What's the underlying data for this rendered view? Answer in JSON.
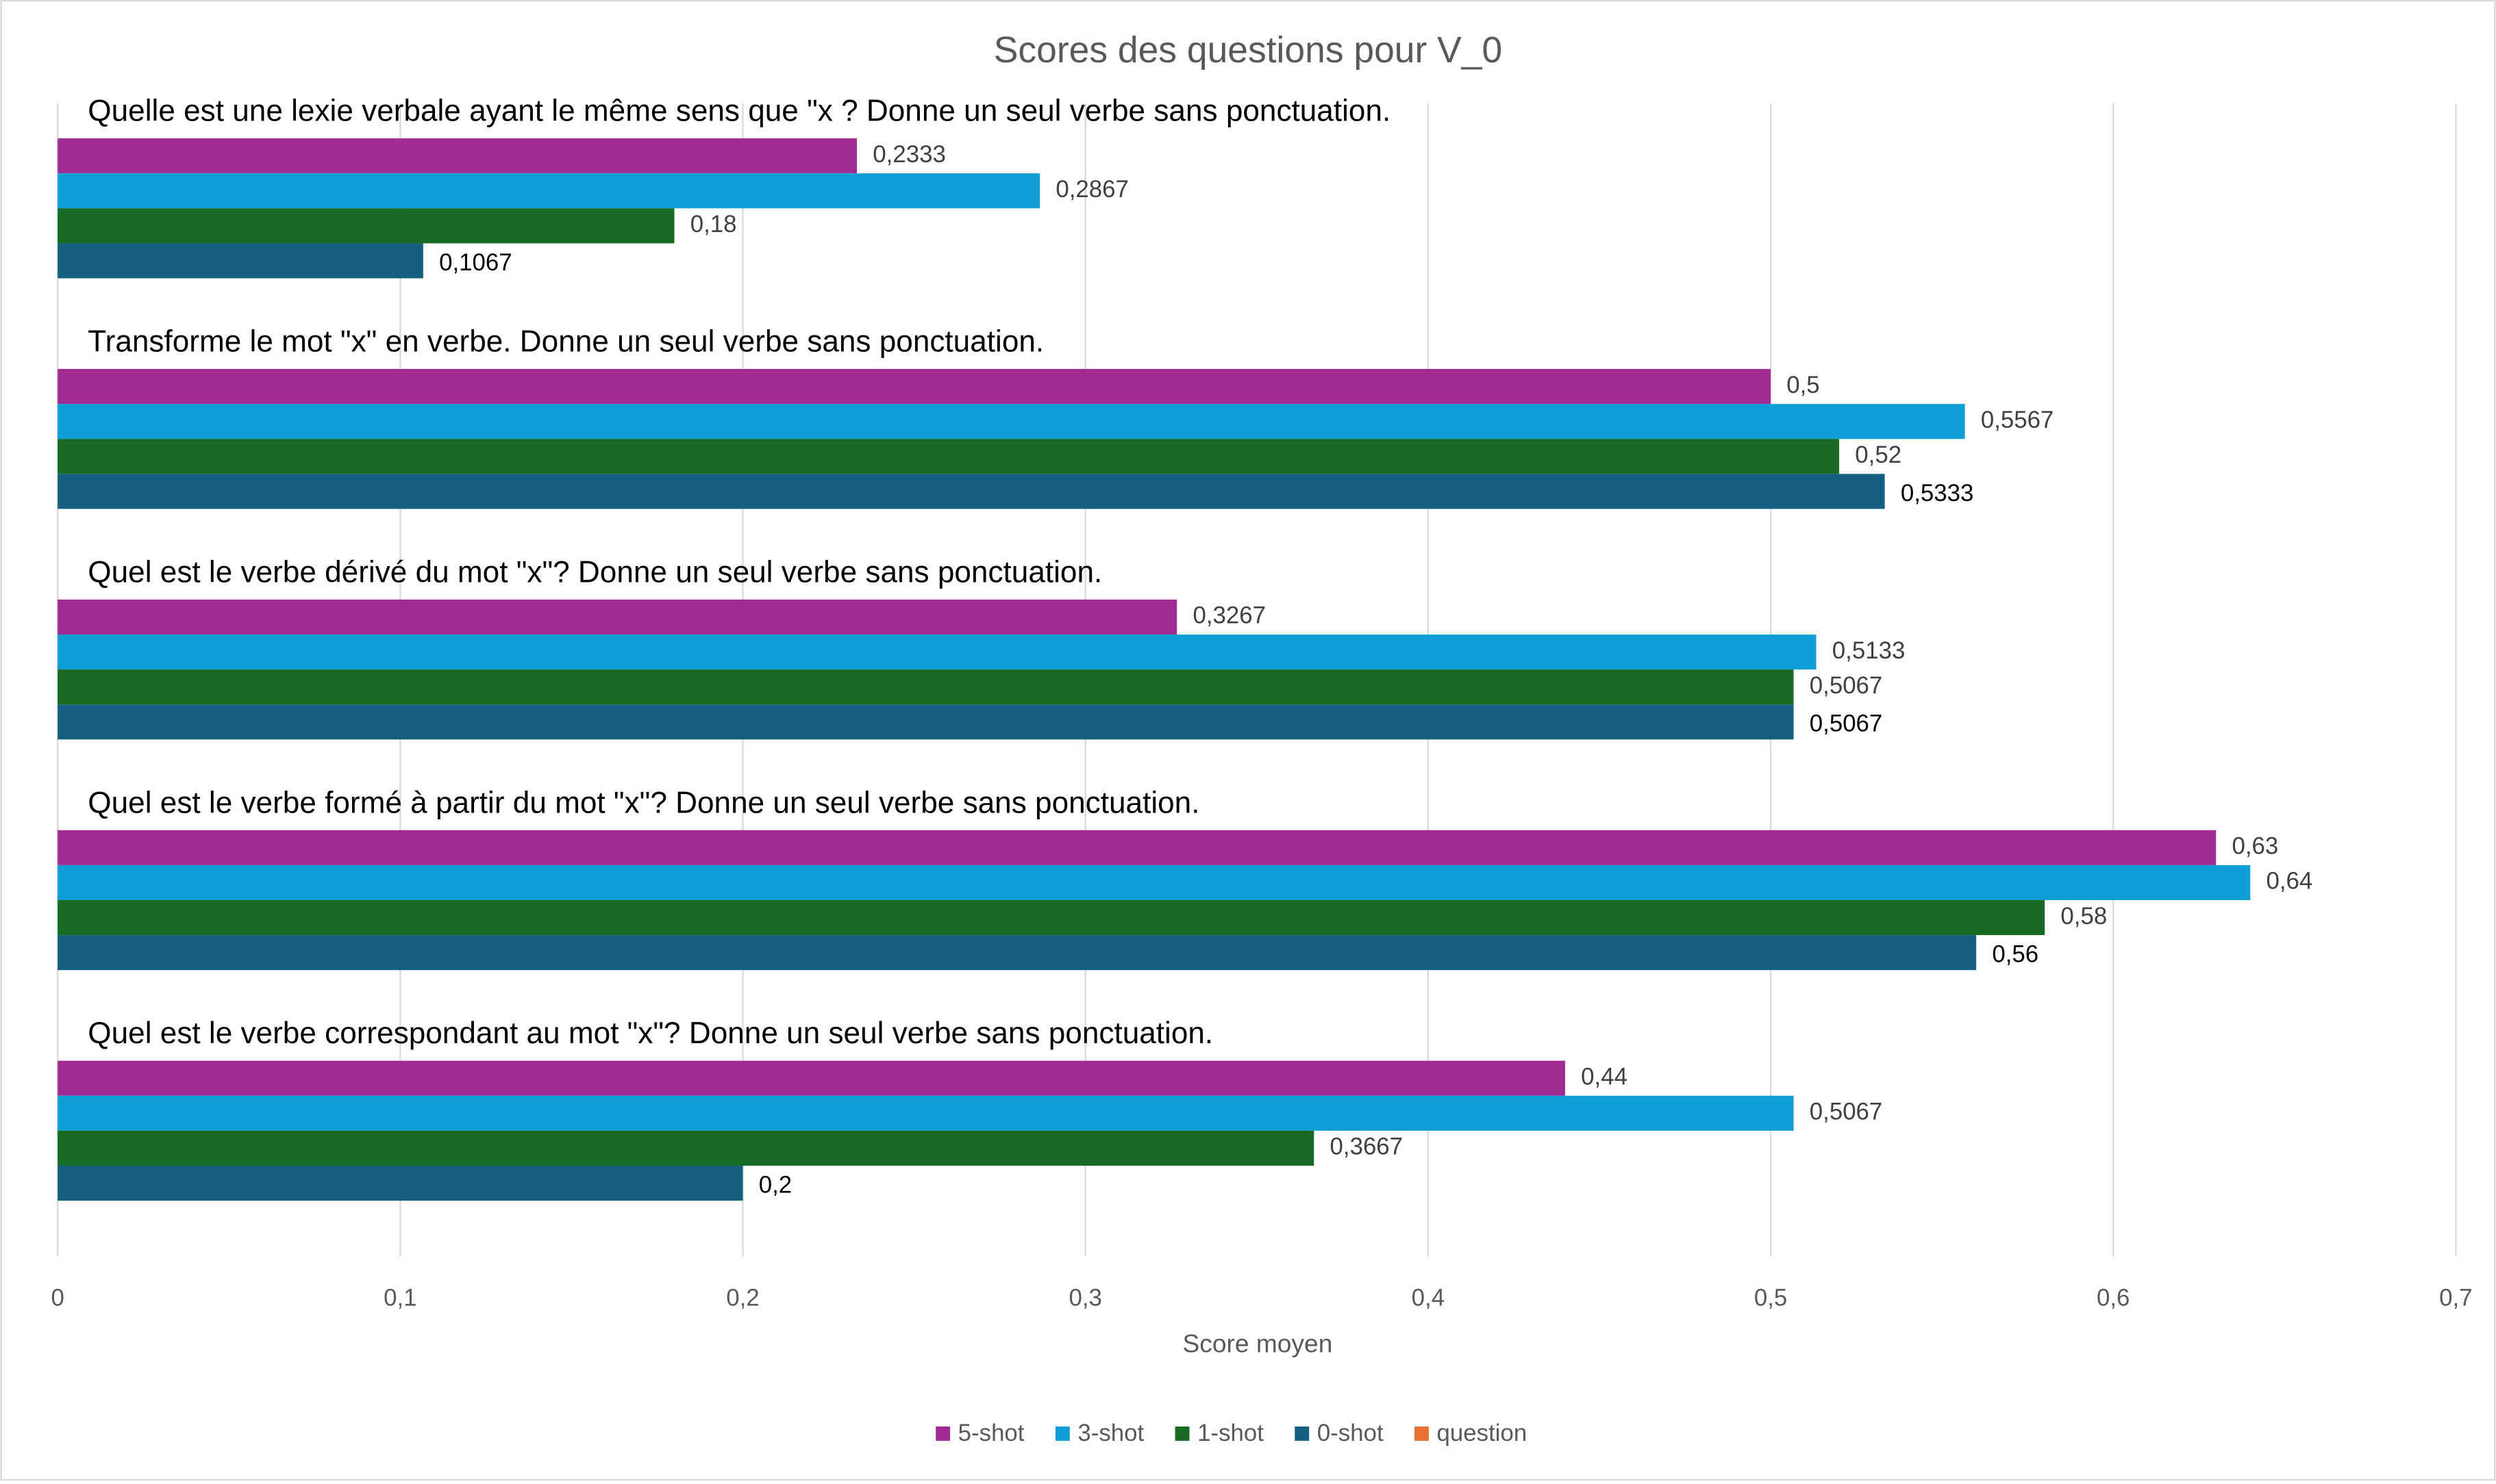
{
  "chart_data": {
    "type": "hbar",
    "title": "Scores  des questions pour V_0",
    "x_label": "Score moyen",
    "categories": [
      "Quelle est une lexie verbale ayant le même sens que \"x ? Donne un seul verbe sans ponctuation.",
      "Transforme le mot \"x\" en verbe. Donne un seul verbe sans ponctuation.",
      "Quel est le verbe dérivé du mot \"x\"? Donne un seul verbe sans ponctuation.",
      "Quel est le verbe formé à partir du mot \"x\"? Donne un seul verbe sans ponctuation.",
      "Quel est le verbe correspondant au mot \"x\"? Donne un seul verbe sans ponctuation."
    ],
    "series": [
      {
        "name": "5-shot",
        "color": "#a02b93",
        "values": [
          0.2333,
          0.5,
          0.3267,
          0.63,
          0.44
        ],
        "value_labels": [
          "0,2333",
          "0,5",
          "0,3267",
          "0,63",
          "0,44"
        ]
      },
      {
        "name": "3-shot",
        "color": "#0f9ed5",
        "values": [
          0.2867,
          0.5567,
          0.5133,
          0.64,
          0.5067
        ],
        "value_labels": [
          "0,2867",
          "0,5567",
          "0,5133",
          "0,64",
          "0,5067"
        ]
      },
      {
        "name": "1-shot",
        "color": "#196b24",
        "values": [
          0.18,
          0.52,
          0.5067,
          0.58,
          0.3667
        ],
        "value_labels": [
          "0,18",
          "0,52",
          "0,5067",
          "0,58",
          "0,3667"
        ]
      },
      {
        "name": "0-shot",
        "color": "#156082",
        "values": [
          0.1067,
          0.5333,
          0.5067,
          0.56,
          0.2
        ],
        "value_labels": [
          "0,1067",
          "0,5333",
          "0,5067",
          "0,56",
          "0,2"
        ]
      },
      {
        "name": "question",
        "color": "#e97132",
        "values": [
          null,
          null,
          null,
          null,
          null
        ]
      }
    ],
    "xlim": [
      0,
      0.7
    ],
    "xticks": [
      0,
      {
        "value": 0.1,
        "label": "0,1"
      },
      {
        "value": 0.2,
        "label": "0,2"
      },
      {
        "value": 0.3,
        "label": "0,3"
      },
      {
        "value": 0.4,
        "label": "0,4"
      },
      {
        "value": 0.5,
        "label": "0,5"
      },
      {
        "value": 0.6,
        "label": "0,6"
      },
      {
        "value": 0.7,
        "label": "0,7"
      }
    ],
    "grid": true,
    "legend": "bottom"
  }
}
